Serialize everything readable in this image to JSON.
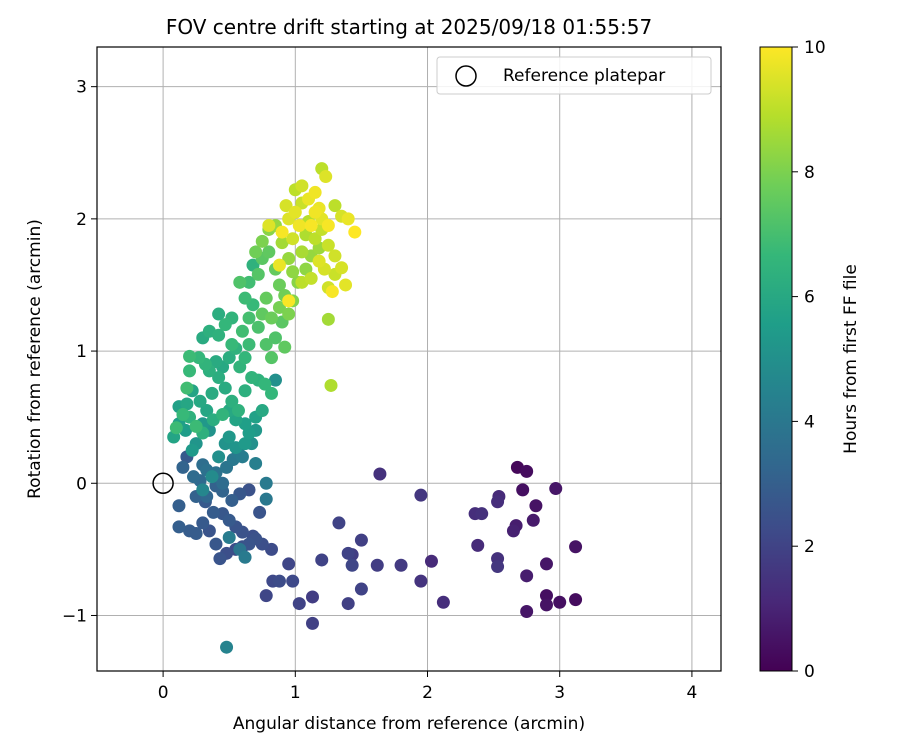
{
  "chart_data": {
    "type": "scatter",
    "title": "FOV centre drift starting at 2025/09/18 01:55:57",
    "xlabel": "Angular distance from reference (arcmin)",
    "ylabel": "Rotation from reference (arcmin)",
    "xlim": [
      -0.5,
      4.22
    ],
    "ylim": [
      -1.42,
      3.3
    ],
    "xticks": [
      "0",
      "1",
      "2",
      "3",
      "4"
    ],
    "yticks": [
      "−1",
      "0",
      "1",
      "2",
      "3"
    ],
    "grid": true,
    "legend": {
      "position": "top-right",
      "label": "Reference platepar"
    },
    "reference_point": {
      "x": 0,
      "y": 0
    },
    "colorbar": {
      "label": "Hours from first FF file",
      "range": [
        0,
        10
      ],
      "ticks": [
        "0",
        "2",
        "4",
        "6",
        "8",
        "10"
      ],
      "colormap": "viridis"
    },
    "colormap_stops": [
      "#440154",
      "#482878",
      "#3e4a89",
      "#31688e",
      "#26828e",
      "#1f9e89",
      "#35b779",
      "#6ece58",
      "#b5de2b",
      "#fde725"
    ],
    "series": [
      {
        "points": [
          [
            2.68,
            0.12,
            0.2
          ],
          [
            2.75,
            0.09,
            0.3
          ],
          [
            2.72,
            -0.05,
            0.4
          ],
          [
            2.82,
            -0.17,
            0.5
          ],
          [
            2.97,
            -0.04,
            0.6
          ],
          [
            2.8,
            -0.28,
            0.7
          ],
          [
            2.67,
            -0.32,
            0.8
          ],
          [
            2.65,
            -0.36,
            0.9
          ],
          [
            3.12,
            -0.48,
            0.5
          ],
          [
            2.9,
            -0.61,
            0.6
          ],
          [
            2.75,
            -0.7,
            0.8
          ],
          [
            2.9,
            -0.85,
            0.4
          ],
          [
            3.12,
            -0.88,
            0.3
          ],
          [
            3.0,
            -0.9,
            0.4
          ],
          [
            2.9,
            -0.92,
            0.5
          ],
          [
            2.75,
            -0.97,
            0.6
          ],
          [
            2.54,
            -0.1,
            1.2
          ],
          [
            2.53,
            -0.14,
            1.3
          ],
          [
            2.36,
            -0.23,
            1.3
          ],
          [
            2.41,
            -0.23,
            1.4
          ],
          [
            2.38,
            -0.47,
            1.2
          ],
          [
            2.53,
            -0.57,
            1.4
          ],
          [
            2.53,
            -0.63,
            1.6
          ],
          [
            1.95,
            -0.09,
            1.6
          ],
          [
            1.64,
            0.07,
            1.4
          ],
          [
            2.03,
            -0.59,
            1.2
          ],
          [
            1.95,
            -0.74,
            1.5
          ],
          [
            2.12,
            -0.9,
            1.3
          ],
          [
            1.8,
            -0.62,
            1.7
          ],
          [
            1.62,
            -0.62,
            1.8
          ],
          [
            1.5,
            -0.43,
            1.9
          ],
          [
            1.43,
            -0.54,
            1.8
          ],
          [
            1.4,
            -0.53,
            2.0
          ],
          [
            1.43,
            -0.62,
            2.1
          ],
          [
            1.5,
            -0.8,
            2.0
          ],
          [
            1.4,
            -0.91,
            1.9
          ],
          [
            1.33,
            -0.3,
            2.0
          ],
          [
            1.2,
            -0.58,
            2.0
          ],
          [
            1.13,
            -0.86,
            1.8
          ],
          [
            1.13,
            -1.06,
            1.9
          ],
          [
            1.03,
            -0.91,
            2.0
          ],
          [
            0.98,
            -0.74,
            2.2
          ],
          [
            0.95,
            -0.61,
            2.1
          ],
          [
            0.88,
            -0.74,
            2.3
          ],
          [
            0.83,
            -0.74,
            2.2
          ],
          [
            0.78,
            -0.85,
            2.1
          ],
          [
            0.82,
            -0.5,
            2.3
          ],
          [
            0.75,
            -0.46,
            2.4
          ],
          [
            0.7,
            -0.42,
            2.5
          ],
          [
            0.65,
            -0.46,
            2.6
          ],
          [
            0.6,
            -0.48,
            2.5
          ],
          [
            0.55,
            -0.5,
            2.3
          ],
          [
            0.48,
            -0.53,
            2.4
          ],
          [
            0.43,
            -0.57,
            2.6
          ],
          [
            0.4,
            -0.46,
            2.7
          ],
          [
            0.35,
            -0.36,
            2.6
          ],
          [
            0.3,
            -0.3,
            2.8
          ],
          [
            0.25,
            -0.38,
            2.9
          ],
          [
            0.2,
            -0.36,
            2.9
          ],
          [
            0.12,
            -0.33,
            3.0
          ],
          [
            0.12,
            -0.17,
            3.0
          ],
          [
            0.25,
            -0.1,
            3.1
          ],
          [
            0.32,
            -0.14,
            2.8
          ],
          [
            0.38,
            -0.22,
            2.9
          ],
          [
            0.45,
            -0.23,
            2.7
          ],
          [
            0.5,
            -0.28,
            2.8
          ],
          [
            0.55,
            -0.33,
            2.6
          ],
          [
            0.6,
            -0.37,
            2.5
          ],
          [
            0.68,
            -0.4,
            2.4
          ],
          [
            0.73,
            -0.22,
            2.6
          ],
          [
            0.65,
            -0.05,
            2.5
          ],
          [
            0.58,
            -0.08,
            2.7
          ],
          [
            0.52,
            -0.13,
            3.0
          ],
          [
            0.45,
            -0.06,
            3.2
          ],
          [
            0.4,
            -0.02,
            3.1
          ],
          [
            0.33,
            -0.1,
            3.3
          ],
          [
            0.18,
            0.2,
            2.8
          ],
          [
            0.15,
            0.12,
            3.2
          ],
          [
            0.23,
            0.05,
            3.5
          ],
          [
            0.28,
            0.02,
            3.4
          ],
          [
            0.3,
            0.14,
            3.6
          ],
          [
            0.33,
            0.1,
            3.7
          ],
          [
            0.4,
            0.08,
            3.8
          ],
          [
            0.48,
            0.12,
            3.9
          ],
          [
            0.53,
            0.18,
            4.0
          ],
          [
            0.57,
            0.23,
            4.1
          ],
          [
            0.6,
            0.2,
            4.2
          ],
          [
            0.7,
            0.15,
            4.3
          ],
          [
            0.78,
            0.0,
            4.1
          ],
          [
            0.78,
            -0.12,
            4.0
          ],
          [
            0.45,
            0.0,
            3.5
          ],
          [
            0.48,
            -1.24,
            4.5
          ],
          [
            0.58,
            -0.5,
            3.9
          ],
          [
            0.62,
            -0.56,
            4.1
          ],
          [
            0.5,
            -0.41,
            4.2
          ],
          [
            0.3,
            -0.05,
            4.6
          ],
          [
            0.37,
            0.05,
            4.8
          ],
          [
            0.42,
            0.2,
            5.0
          ],
          [
            0.47,
            0.3,
            5.1
          ],
          [
            0.5,
            0.35,
            5.3
          ],
          [
            0.55,
            0.27,
            5.2
          ],
          [
            0.62,
            0.3,
            5.4
          ],
          [
            0.65,
            0.38,
            5.5
          ],
          [
            0.7,
            0.4,
            5.3
          ],
          [
            0.67,
            0.3,
            5.0
          ],
          [
            0.35,
            0.4,
            5.1
          ],
          [
            0.3,
            0.45,
            5.3
          ],
          [
            0.25,
            0.3,
            5.2
          ],
          [
            0.22,
            0.25,
            5.4
          ],
          [
            0.17,
            0.4,
            5.5
          ],
          [
            0.12,
            0.45,
            5.6
          ],
          [
            0.08,
            0.35,
            5.8
          ],
          [
            0.12,
            0.58,
            5.7
          ],
          [
            0.18,
            0.6,
            5.9
          ],
          [
            0.22,
            0.7,
            5.8
          ],
          [
            0.28,
            0.62,
            6.0
          ],
          [
            0.33,
            0.55,
            5.9
          ],
          [
            0.37,
            0.68,
            6.1
          ],
          [
            0.42,
            0.8,
            6.2
          ],
          [
            0.47,
            0.72,
            6.1
          ],
          [
            0.52,
            0.62,
            6.3
          ],
          [
            0.57,
            0.55,
            6.4
          ],
          [
            0.62,
            0.7,
            6.3
          ],
          [
            0.67,
            0.8,
            6.5
          ],
          [
            0.72,
            0.78,
            6.4
          ],
          [
            0.77,
            0.75,
            6.6
          ],
          [
            0.82,
            0.68,
            6.6
          ],
          [
            0.85,
            0.78,
            5.0
          ],
          [
            0.75,
            0.55,
            6.0
          ],
          [
            0.7,
            0.5,
            5.7
          ],
          [
            0.62,
            0.45,
            5.6
          ],
          [
            0.55,
            0.48,
            5.8
          ],
          [
            0.5,
            0.55,
            6.0
          ],
          [
            0.45,
            0.52,
            6.5
          ],
          [
            0.38,
            0.48,
            6.2
          ],
          [
            0.3,
            0.38,
            6.3
          ],
          [
            0.25,
            0.43,
            6.8
          ],
          [
            0.2,
            0.5,
            6.4
          ],
          [
            0.15,
            0.52,
            6.7
          ],
          [
            0.1,
            0.42,
            6.8
          ],
          [
            0.18,
            0.72,
            6.9
          ],
          [
            0.2,
            0.85,
            6.7
          ],
          [
            0.2,
            0.96,
            6.8
          ],
          [
            0.27,
            0.95,
            6.6
          ],
          [
            0.32,
            0.9,
            6.5
          ],
          [
            0.35,
            0.85,
            6.3
          ],
          [
            0.4,
            0.92,
            6.1
          ],
          [
            0.45,
            0.88,
            6.0
          ],
          [
            0.5,
            0.95,
            6.2
          ],
          [
            0.55,
            1.02,
            6.4
          ],
          [
            0.58,
            0.88,
            6.5
          ],
          [
            0.62,
            0.95,
            6.6
          ],
          [
            0.65,
            1.05,
            6.8
          ],
          [
            0.3,
            1.1,
            6.1
          ],
          [
            0.35,
            1.15,
            6.3
          ],
          [
            0.42,
            1.12,
            6.4
          ],
          [
            0.42,
            1.28,
            6.2
          ],
          [
            0.47,
            1.2,
            6.6
          ],
          [
            0.52,
            1.05,
            6.7
          ],
          [
            0.52,
            1.25,
            6.5
          ],
          [
            0.6,
            1.15,
            6.9
          ],
          [
            0.65,
            1.25,
            7.0
          ],
          [
            0.68,
            1.35,
            6.7
          ],
          [
            0.72,
            1.18,
            7.1
          ],
          [
            0.78,
            1.05,
            7.2
          ],
          [
            0.82,
            0.95,
            7.3
          ],
          [
            0.85,
            1.1,
            7.2
          ],
          [
            0.9,
            1.22,
            7.4
          ],
          [
            0.92,
            1.03,
            7.5
          ],
          [
            0.62,
            1.4,
            6.8
          ],
          [
            0.65,
            1.52,
            6.9
          ],
          [
            0.68,
            1.65,
            6.4
          ],
          [
            0.58,
            1.52,
            7.2
          ],
          [
            0.72,
            1.58,
            7.3
          ],
          [
            0.75,
            1.7,
            7.4
          ],
          [
            0.8,
            1.75,
            7.5
          ],
          [
            0.85,
            1.62,
            7.6
          ],
          [
            0.88,
            1.5,
            7.7
          ],
          [
            0.92,
            1.42,
            7.8
          ],
          [
            0.78,
            1.4,
            7.6
          ],
          [
            0.75,
            1.28,
            7.5
          ],
          [
            0.82,
            1.25,
            7.7
          ],
          [
            0.88,
            1.33,
            7.9
          ],
          [
            0.95,
            1.28,
            8.0
          ],
          [
            0.98,
            1.38,
            8.1
          ],
          [
            1.02,
            1.52,
            8.2
          ],
          [
            1.08,
            1.62,
            8.3
          ],
          [
            1.12,
            1.72,
            8.4
          ],
          [
            1.18,
            1.78,
            8.5
          ],
          [
            0.7,
            1.75,
            7.8
          ],
          [
            0.75,
            1.83,
            8.0
          ],
          [
            0.8,
            1.92,
            8.2
          ],
          [
            0.85,
            1.95,
            8.4
          ],
          [
            0.9,
            1.82,
            8.6
          ],
          [
            0.95,
            1.7,
            8.4
          ],
          [
            0.98,
            1.6,
            8.3
          ],
          [
            1.05,
            1.75,
            8.7
          ],
          [
            1.08,
            1.88,
            8.8
          ],
          [
            1.1,
            1.98,
            8.9
          ],
          [
            1.15,
            1.85,
            9.0
          ],
          [
            1.2,
            1.92,
            9.1
          ],
          [
            1.25,
            1.8,
            9.2
          ],
          [
            1.3,
            1.72,
            9.3
          ],
          [
            1.35,
            1.63,
            9.4
          ],
          [
            1.3,
            1.58,
            9.2
          ],
          [
            1.25,
            1.48,
            9.3
          ],
          [
            1.22,
            1.62,
            9.4
          ],
          [
            1.18,
            1.68,
            9.5
          ],
          [
            1.12,
            1.55,
            9.1
          ],
          [
            1.05,
            1.52,
            9.0
          ],
          [
            0.98,
            1.85,
            9.3
          ],
          [
            0.95,
            2.0,
            9.5
          ],
          [
            1.0,
            2.05,
            9.6
          ],
          [
            1.05,
            2.12,
            9.2
          ],
          [
            1.0,
            2.22,
            9.0
          ],
          [
            1.05,
            2.25,
            9.3
          ],
          [
            1.1,
            2.15,
            9.7
          ],
          [
            1.15,
            2.05,
            9.8
          ],
          [
            1.2,
            2.0,
            9.6
          ],
          [
            1.25,
            1.95,
            9.9
          ],
          [
            1.3,
            2.1,
            9.0
          ],
          [
            1.35,
            2.02,
            9.4
          ],
          [
            1.4,
            2.0,
            9.7
          ],
          [
            1.45,
            1.9,
            10.0
          ],
          [
            1.2,
            2.38,
            9.0
          ],
          [
            1.23,
            2.32,
            9.5
          ],
          [
            1.15,
            2.2,
            9.8
          ],
          [
            1.38,
            1.5,
            9.6
          ],
          [
            1.28,
            1.45,
            9.9
          ],
          [
            1.25,
            1.24,
            8.6
          ],
          [
            1.27,
            0.74,
            8.8
          ],
          [
            0.95,
            1.38,
            9.9
          ],
          [
            0.8,
            1.95,
            9.5
          ],
          [
            0.88,
            1.65,
            9.7
          ],
          [
            0.9,
            1.9,
            9.9
          ],
          [
            1.03,
            1.95,
            9.8
          ],
          [
            0.93,
            2.1,
            9.4
          ],
          [
            1.12,
            1.95,
            9.9
          ],
          [
            1.18,
            2.08,
            9.7
          ]
        ]
      }
    ]
  }
}
